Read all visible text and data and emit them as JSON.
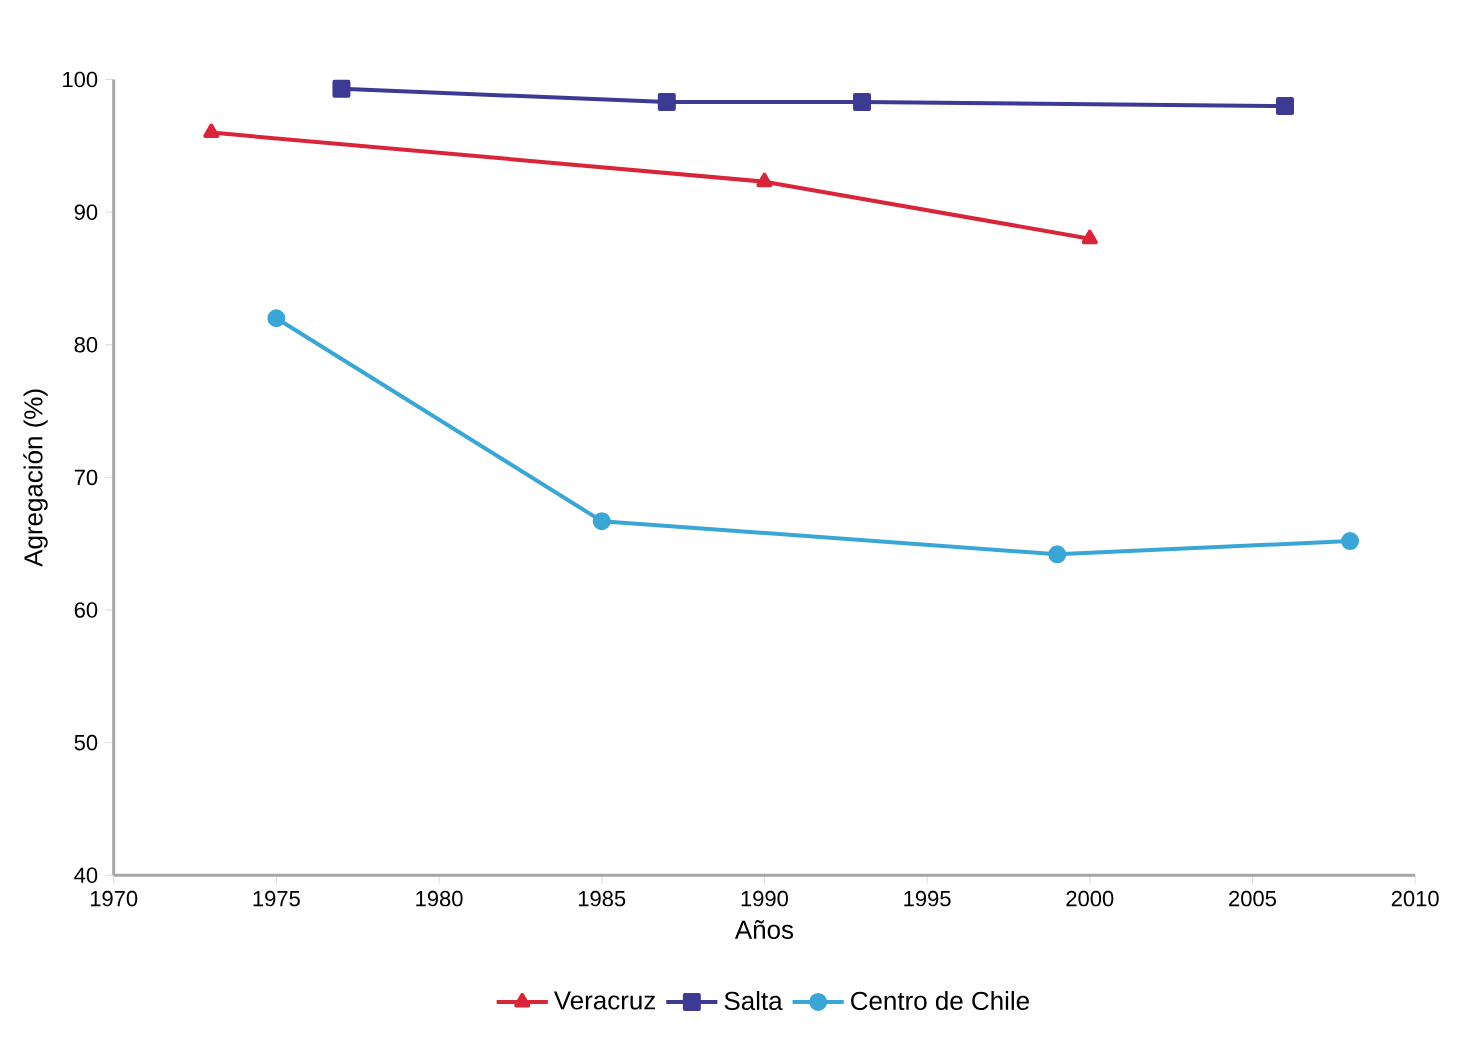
{
  "chart_data": {
    "type": "line",
    "xlabel": "Años",
    "ylabel": "Agregación (%)",
    "xlim": [
      1970,
      2010
    ],
    "xticks": [
      1970,
      1975,
      1980,
      1985,
      1990,
      1995,
      2000,
      2005,
      2010
    ],
    "ylim": [
      40,
      100
    ],
    "yticks": [
      40,
      50,
      60,
      70,
      80,
      90,
      100
    ],
    "grid": false,
    "legend": "bottom",
    "line_style": "solid",
    "series": [
      {
        "name": "Veracruz",
        "color": "#d9253a",
        "marker": "triangle",
        "x": [
          1973,
          1990,
          2000
        ],
        "values": [
          96,
          92.3,
          88
        ]
      },
      {
        "name": "Salta",
        "color": "#3d3a94",
        "marker": "square",
        "x": [
          1977,
          1987,
          1993,
          2006
        ],
        "values": [
          99.3,
          98.3,
          98.3,
          98
        ]
      },
      {
        "name": "Centro de Chile",
        "color": "#3aa6d6",
        "marker": "circle",
        "x": [
          1975,
          1985,
          1999,
          2008
        ],
        "values": [
          82,
          66.7,
          64.2,
          65.2
        ]
      }
    ]
  }
}
